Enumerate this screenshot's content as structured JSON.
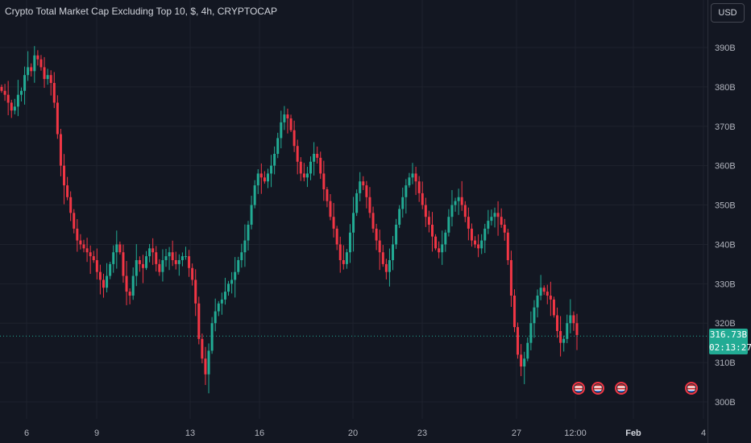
{
  "header": {
    "title": "Crypto Total Market Cap Excluding Top 10, $, 4h, CRYPTOCAP"
  },
  "currency_button": {
    "label": "USD"
  },
  "price_badge": {
    "price": "316.73B",
    "countdown": "02:13:27"
  },
  "events": [
    "us-flag-icon",
    "us-flag-icon",
    "us-flag-icon",
    "us-flag-icon"
  ],
  "colors": {
    "up": "#22ab94",
    "down": "#f23645",
    "background": "#131722",
    "grid": "#1e222d",
    "text": "#b2b5be"
  },
  "chart_data": {
    "type": "candlestick",
    "title": "Crypto Total Market Cap Excluding Top 10, $, 4h, CRYPTOCAP",
    "ylim": [
      295,
      400
    ],
    "y_ticks": [
      300,
      310,
      320,
      330,
      340,
      350,
      360,
      370,
      380,
      390
    ],
    "y_tick_labels": [
      "300B",
      "310B",
      "320B",
      "330B",
      "340B",
      "350B",
      "360B",
      "370B",
      "380B",
      "390B"
    ],
    "x_tick_labels": [
      "6",
      "9",
      "13",
      "16",
      "20",
      "23",
      "27",
      "12:00",
      "Feb",
      "4"
    ],
    "last_price": 316.73,
    "close": [
      379,
      378,
      376,
      374,
      375,
      378,
      379,
      383,
      385,
      384,
      388,
      387,
      385,
      382,
      383,
      381,
      376,
      368,
      360,
      355,
      352,
      348,
      344,
      341,
      340,
      339,
      338,
      337,
      336,
      333,
      331,
      329,
      332,
      335,
      338,
      340,
      338,
      332,
      328,
      327,
      332,
      336,
      335,
      334,
      337,
      339,
      338,
      335,
      333,
      336,
      337,
      338,
      336,
      335,
      336,
      337,
      337,
      334,
      331,
      325,
      316,
      311,
      307,
      313,
      320,
      323,
      325,
      326,
      328,
      330,
      331,
      333,
      336,
      338,
      341,
      345,
      350,
      355,
      358,
      357,
      356,
      358,
      360,
      363,
      367,
      371,
      373,
      372,
      369,
      365,
      361,
      358,
      357,
      358,
      361,
      363,
      362,
      358,
      354,
      351,
      347,
      344,
      340,
      336,
      335,
      338,
      343,
      348,
      353,
      356,
      355,
      352,
      348,
      344,
      341,
      338,
      335,
      333,
      336,
      340,
      345,
      349,
      352,
      355,
      357,
      358,
      356,
      353,
      350,
      347,
      345,
      342,
      339,
      338,
      340,
      343,
      347,
      350,
      351,
      352,
      350,
      347,
      344,
      341,
      340,
      339,
      341,
      344,
      346,
      347,
      348,
      347,
      345,
      343,
      336,
      327,
      319,
      312,
      309,
      311,
      315,
      320,
      324,
      327,
      329,
      328,
      327,
      326,
      322,
      318,
      315,
      316,
      320,
      322,
      320,
      317
    ]
  }
}
